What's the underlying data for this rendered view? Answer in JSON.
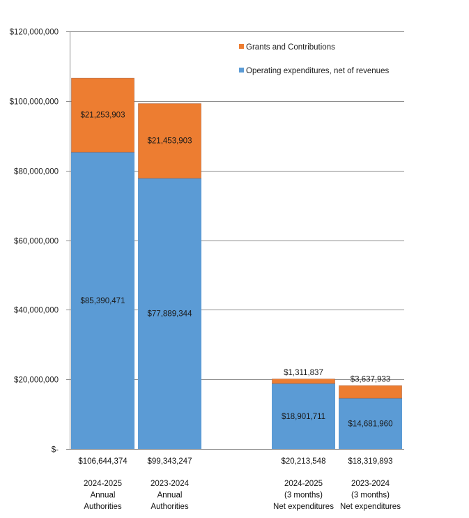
{
  "chart_data": {
    "type": "bar",
    "stacked": true,
    "title": "",
    "xlabel": "",
    "ylabel": "",
    "ylim": [
      0,
      120000000
    ],
    "yticks": [
      0,
      20000000,
      40000000,
      60000000,
      80000000,
      100000000,
      120000000
    ],
    "ytick_labels": [
      "$-",
      "$20,000,000",
      "$40,000,000",
      "$60,000,000",
      "$80,000,000",
      "$100,000,000",
      "$120,000,000"
    ],
    "grid": true,
    "legend_position": "top-right",
    "categories": [
      [
        "2024-2025",
        "Annual",
        "Authorities"
      ],
      [
        "2023-2024",
        "Annual",
        "Authorities"
      ],
      [
        "2024-2025",
        "(3 months)",
        "Net expenditures"
      ],
      [
        "2023-2024",
        "(3 months)",
        "Net expenditures"
      ]
    ],
    "category_gap_after_index": 1,
    "totals": [
      106644374,
      99343247,
      20213548,
      18319893
    ],
    "total_labels": [
      "$106,644,374",
      "$99,343,247",
      "$20,213,548",
      "$18,319,893"
    ],
    "series": [
      {
        "name": "Operating expenditures, net of revenues",
        "color": "#5B9BD5",
        "values": [
          85390471,
          77889344,
          18901711,
          14681960
        ],
        "labels": [
          "$85,390,471",
          "$77,889,344",
          "$18,901,711",
          "$14,681,960"
        ]
      },
      {
        "name": "Grants and Contributions",
        "color": "#ED7D31",
        "values": [
          21253903,
          21453903,
          1311837,
          3637933
        ],
        "labels": [
          "$21,253,903",
          "$21,453,903",
          "$1,311,837",
          "$3,637,933"
        ]
      }
    ],
    "legend_order": [
      "Grants and Contributions",
      "Operating expenditures, net of revenues"
    ]
  }
}
